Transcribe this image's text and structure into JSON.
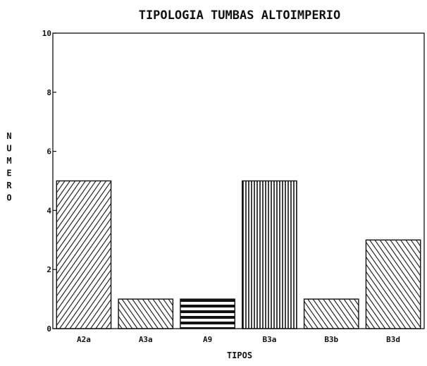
{
  "chart_data": {
    "type": "bar",
    "title": "TIPOLOGIA TUMBAS ALTOIMPERIO",
    "xlabel": "TIPOS",
    "ylabel": "NUMERO",
    "categories": [
      "A2a",
      "A3a",
      "A9",
      "B3a",
      "B3b",
      "B3d"
    ],
    "values": [
      5,
      1,
      1,
      5,
      1,
      3
    ],
    "ylim": [
      0,
      10
    ],
    "yticks": [
      "0",
      "2",
      "4",
      "6",
      "8",
      "10"
    ],
    "grid": false,
    "legend": "none",
    "bar_patterns": [
      "diagonal-right",
      "diagonal-left",
      "horizontal",
      "vertical",
      "diagonal-left",
      "diagonal-left"
    ],
    "colors": {
      "ink": "#111111",
      "background": "#ffffff"
    }
  }
}
